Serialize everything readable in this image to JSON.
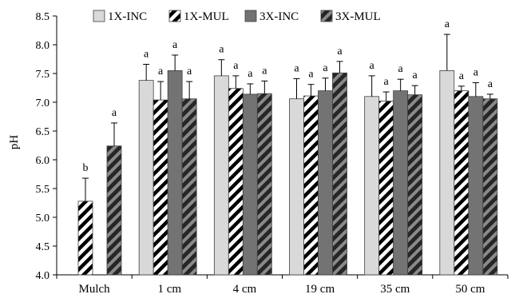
{
  "chart_data": {
    "type": "bar",
    "title": "",
    "xlabel": "",
    "ylabel": "pH",
    "ylim": [
      4.0,
      8.5
    ],
    "yticks": [
      "4.0",
      "4.5",
      "5.0",
      "5.5",
      "6.0",
      "6.5",
      "7.0",
      "7.5",
      "8.0",
      "8.5"
    ],
    "grid": false,
    "legend_position": "top",
    "categories": [
      "Mulch",
      "1 cm",
      "4 cm",
      "19 cm",
      "35 cm",
      "50 cm"
    ],
    "series": [
      {
        "name": "1X-INC",
        "fill": "#d9d9d9",
        "pattern": "solid",
        "values": [
          null,
          7.38,
          7.46,
          7.06,
          7.1,
          7.55
        ],
        "errors": [
          null,
          0.28,
          0.28,
          0.35,
          0.36,
          0.63
        ],
        "labels": [
          "",
          "a",
          "a",
          "a",
          "a",
          "a"
        ]
      },
      {
        "name": "1X-MUL",
        "fill": "#ffffff",
        "pattern": "diagonal-black-on-white",
        "values": [
          5.28,
          7.04,
          7.24,
          7.11,
          7.02,
          7.2
        ],
        "errors": [
          0.4,
          0.32,
          0.22,
          0.2,
          0.16,
          0.08
        ],
        "labels": [
          "b",
          "a",
          "a",
          "a",
          "a",
          "a"
        ]
      },
      {
        "name": "3X-INC",
        "fill": "#737373",
        "pattern": "solid",
        "values": [
          null,
          7.55,
          7.14,
          7.2,
          7.2,
          7.1
        ],
        "errors": [
          null,
          0.27,
          0.18,
          0.22,
          0.2,
          0.24
        ],
        "labels": [
          "",
          "a",
          "a",
          "a",
          "a",
          "a"
        ]
      },
      {
        "name": "3X-MUL",
        "fill": "#404040",
        "pattern": "diagonal-dark-on-gray",
        "values": [
          6.24,
          7.06,
          7.15,
          7.51,
          7.13,
          7.06
        ],
        "errors": [
          0.4,
          0.3,
          0.22,
          0.2,
          0.16,
          0.08
        ],
        "labels": [
          "a",
          "a",
          "a",
          "a",
          "a",
          "a"
        ]
      }
    ]
  }
}
